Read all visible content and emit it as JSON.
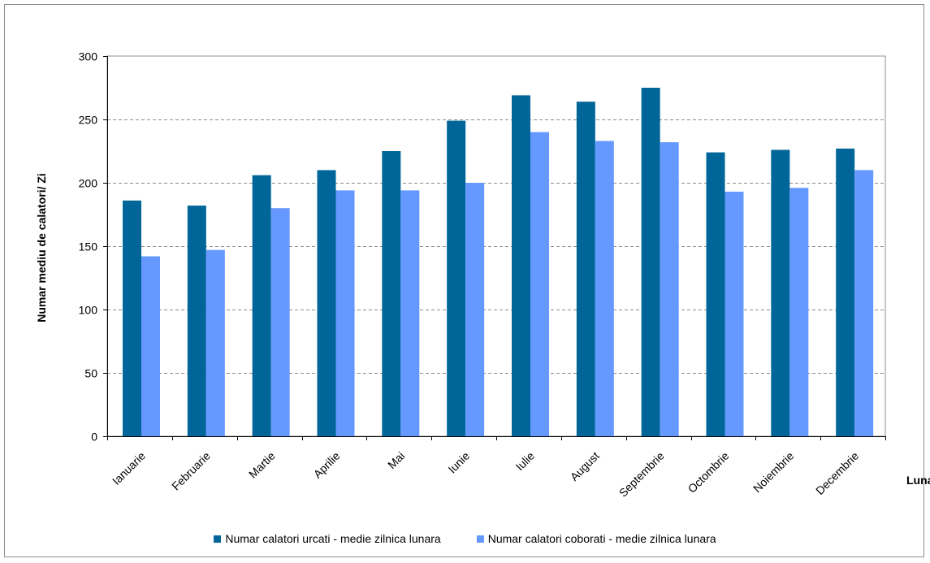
{
  "colors": {
    "series1": "#006699",
    "series2": "#6699ff",
    "grid": "#8c8c8c",
    "axis": "#000000"
  },
  "chart_data": {
    "type": "bar",
    "categories": [
      "Ianuarie",
      "Februarie",
      "Martie",
      "Aprilie",
      "Mai",
      "Iunie",
      "Iulie",
      "August",
      "Septembrie",
      "Octombrie",
      "Noiembrie",
      "Decembrie"
    ],
    "series": [
      {
        "name": "Numar calatori urcati - medie zilnica lunara",
        "color": "#006699",
        "values": [
          186,
          182,
          206,
          210,
          225,
          249,
          269,
          264,
          275,
          224,
          226,
          227
        ]
      },
      {
        "name": "Numar calatori coborati - medie zilnica lunara",
        "color": "#6699ff",
        "values": [
          142,
          147,
          180,
          194,
          194,
          200,
          240,
          233,
          232,
          193,
          196,
          210
        ]
      }
    ],
    "title": "",
    "xlabel": "Luna",
    "ylabel": "Numar mediu de calatori/ Zi",
    "ylim": [
      0,
      300
    ],
    "yticks": [
      0,
      50,
      100,
      150,
      200,
      250,
      300
    ],
    "grid": "horizontal dashed",
    "legend_position": "bottom"
  }
}
